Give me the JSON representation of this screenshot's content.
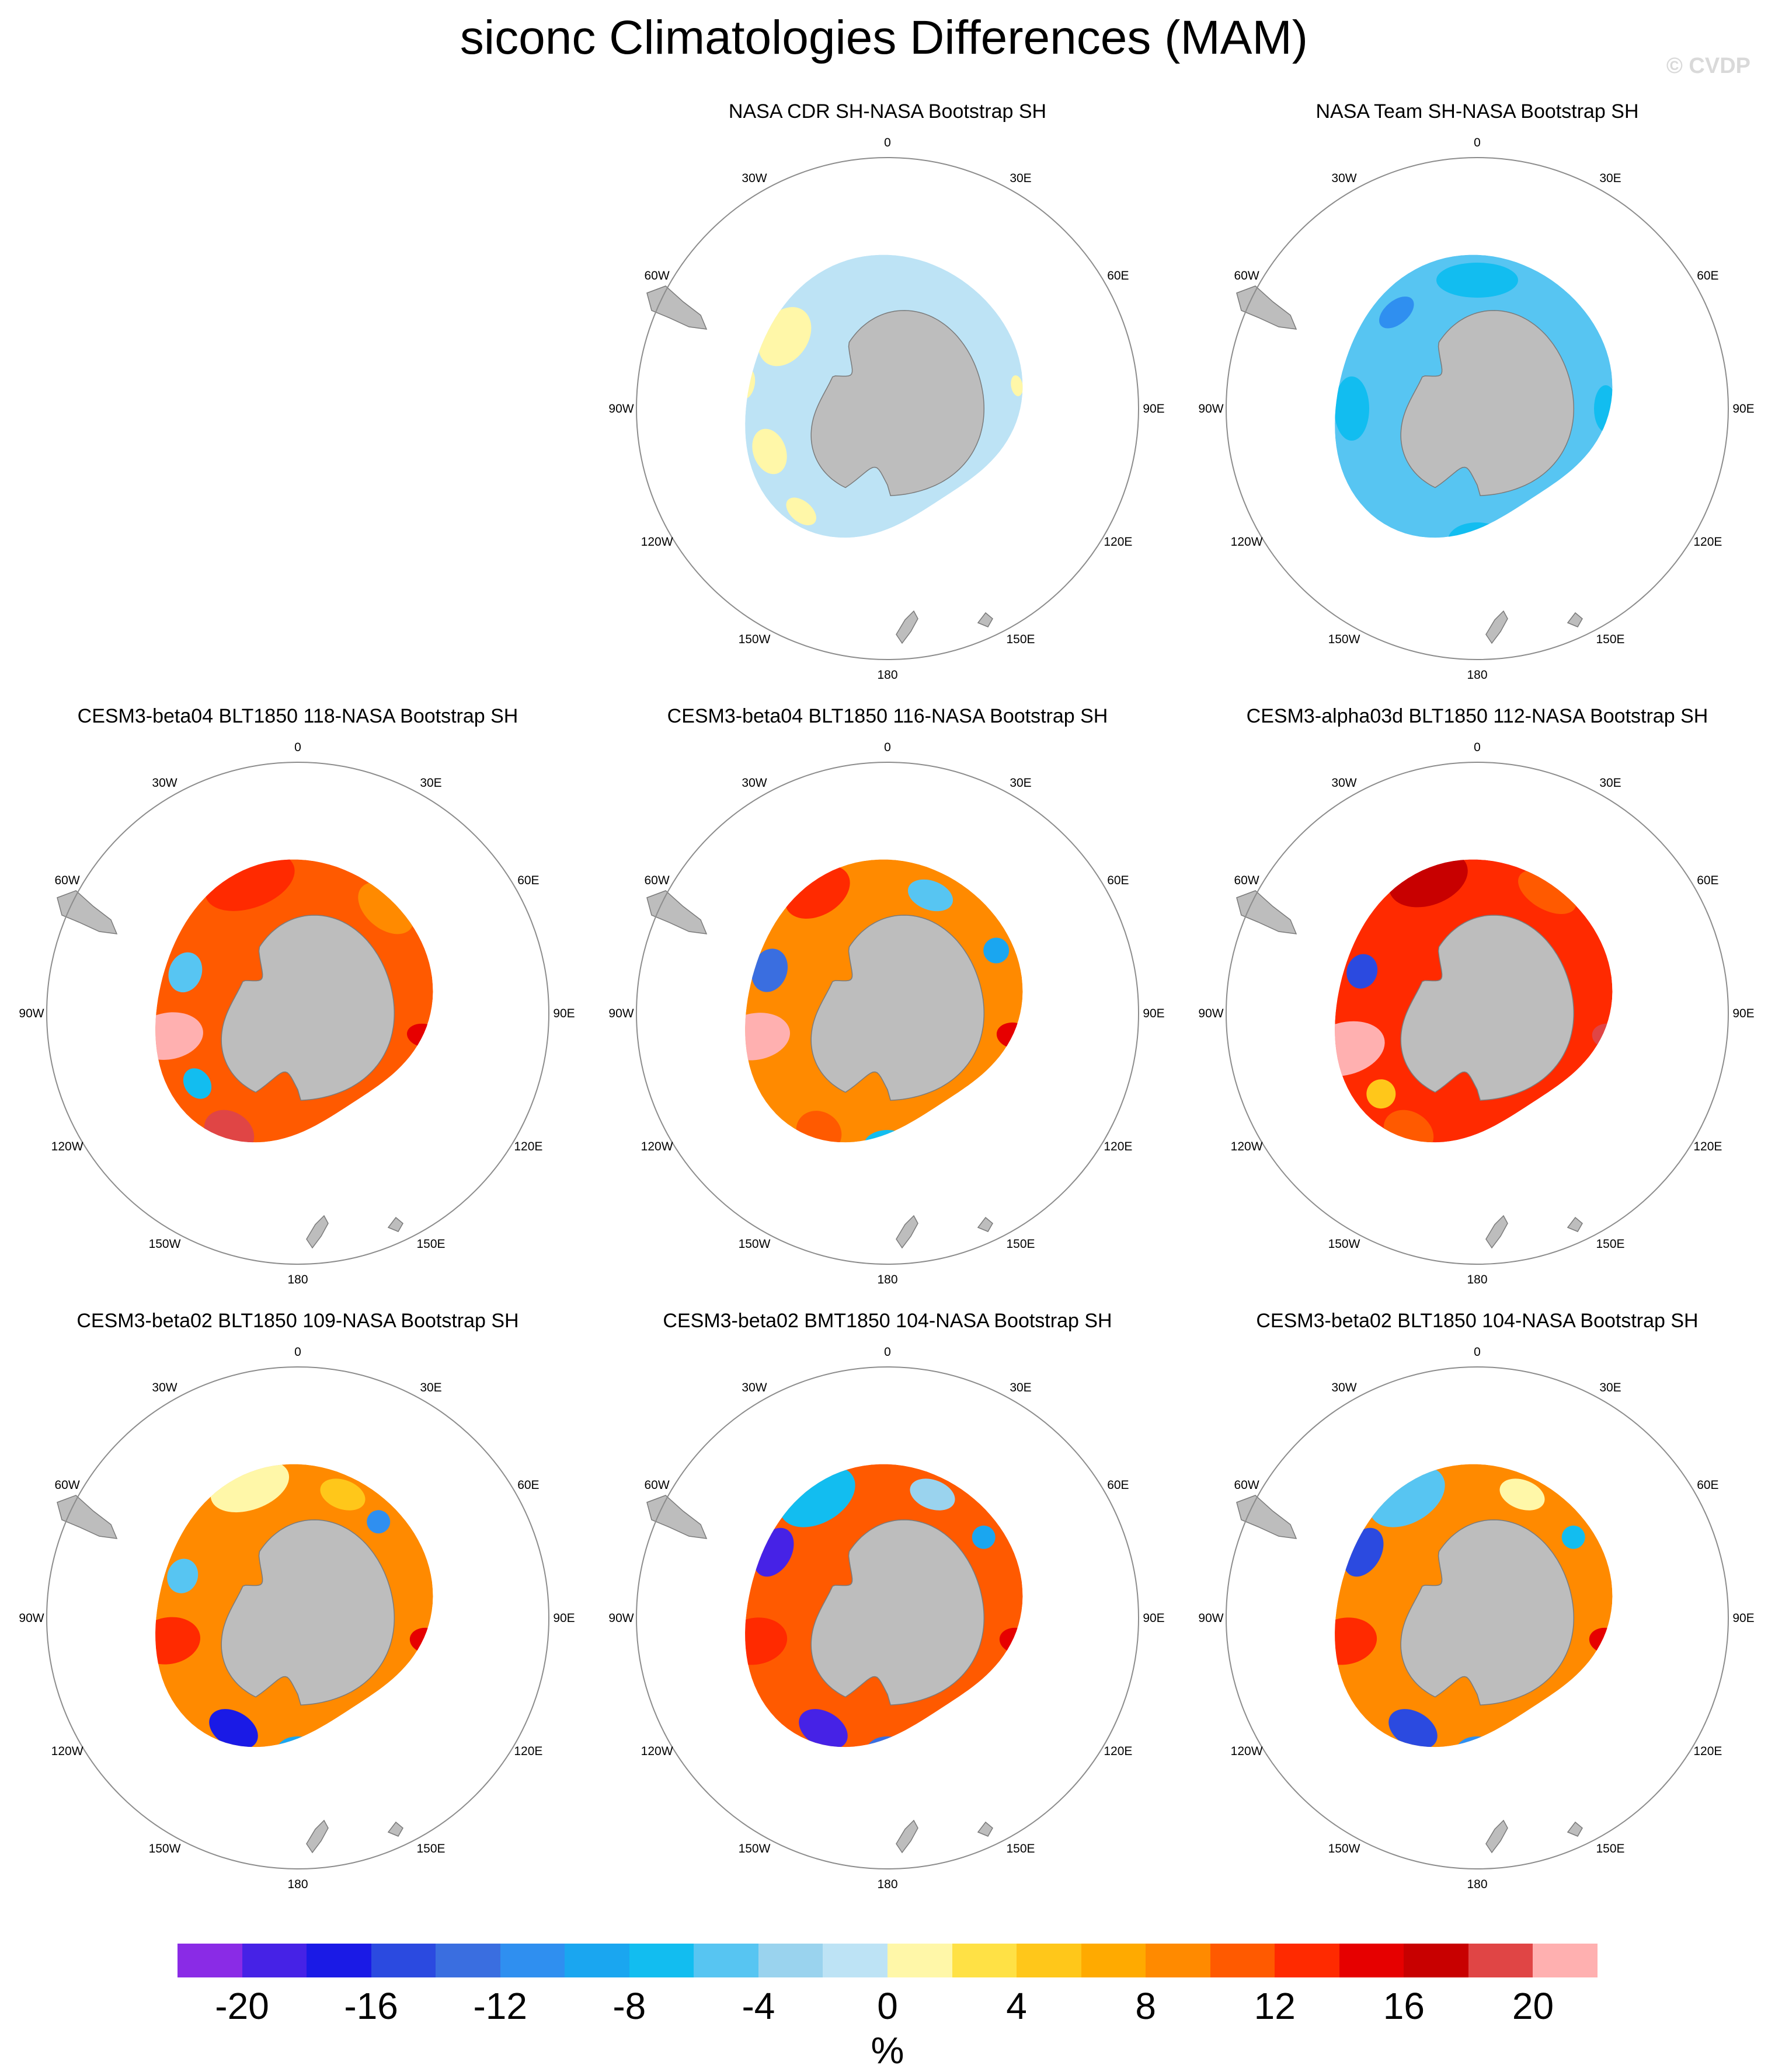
{
  "title": "siconc Climatologies Differences (MAM)",
  "copyright": "© CVDP",
  "longitude_labels": [
    "0",
    "30E",
    "60E",
    "90E",
    "120E",
    "150E",
    "180",
    "150W",
    "120W",
    "90W",
    "60W",
    "30W"
  ],
  "panels": [
    {
      "title": "NASA CDR SH-NASA Bootstrap SH",
      "pattern": "cdr"
    },
    {
      "title": "NASA Team SH-NASA Bootstrap SH",
      "pattern": "team"
    },
    {
      "title": "CESM3-beta04 BLT1850 118-NASA Bootstrap SH",
      "pattern": "m1"
    },
    {
      "title": "CESM3-beta04 BLT1850 116-NASA Bootstrap SH",
      "pattern": "m2"
    },
    {
      "title": "CESM3-alpha03d BLT1850 112-NASA Bootstrap SH",
      "pattern": "m3"
    },
    {
      "title": "CESM3-beta02 BLT1850 109-NASA Bootstrap SH",
      "pattern": "m4"
    },
    {
      "title": "CESM3-beta02 BMT1850 104-NASA Bootstrap SH",
      "pattern": "m5"
    },
    {
      "title": "CESM3-beta02 BLT1850 104-NASA Bootstrap SH",
      "pattern": "m6"
    }
  ],
  "colorbar": {
    "units": "%",
    "tick_labels": [
      "-20",
      "-16",
      "-12",
      "-8",
      "-4",
      "0",
      "4",
      "8",
      "12",
      "16",
      "20"
    ],
    "colors": [
      "#8a2be6",
      "#4622e6",
      "#1a1ae6",
      "#2b4ae0",
      "#3a6ee0",
      "#2f8ff0",
      "#1aa6f0",
      "#12bdf0",
      "#57c5f2",
      "#9ad3ee",
      "#bde3f5",
      "#fff7a8",
      "#ffe145",
      "#ffc71a",
      "#ffaa00",
      "#ff8a00",
      "#ff5a00",
      "#ff2a00",
      "#e60000",
      "#c80000",
      "#e04545",
      "#ffb0b0"
    ]
  },
  "colors": {
    "land": "#bdbdbd",
    "circle": "#8c8c8c",
    "coast": "#7a7a7a"
  }
}
